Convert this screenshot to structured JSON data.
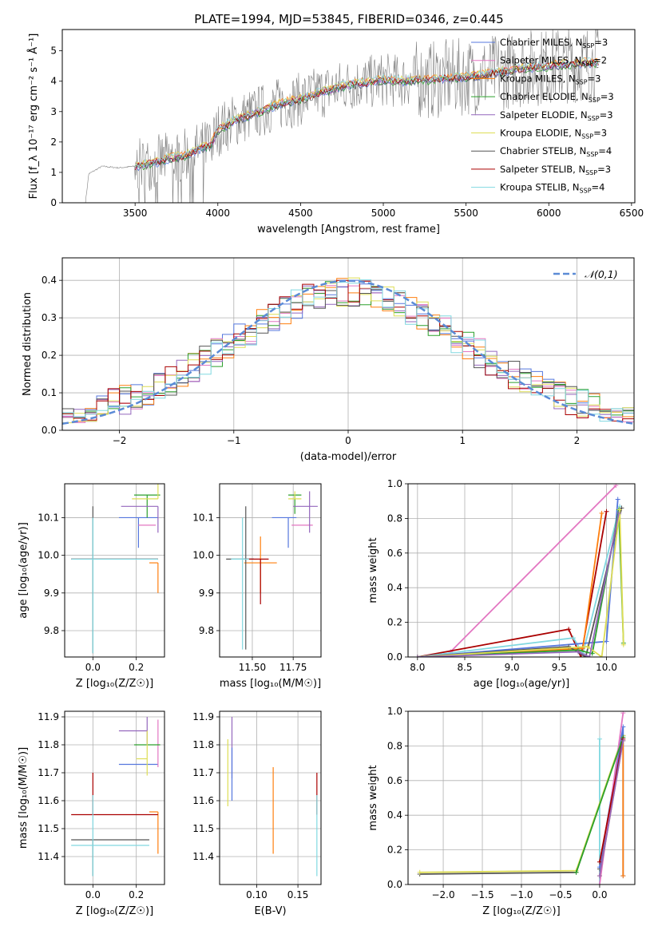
{
  "title": "PLATE=1994, MJD=53845, FIBERID=0346, z=0.445",
  "colors": {
    "chabrier_miles": "#5577dd",
    "salpeter_miles": "#e377c2",
    "kroupa_miles": "#ff7f0e",
    "chabrier_elodie": "#2ca02c",
    "salpeter_elodie": "#9467bd",
    "kroupa_elodie": "#dddd55",
    "chabrier_stelib": "#555555",
    "salpeter_stelib": "#aa0000",
    "kroupa_stelib": "#80d8e0",
    "gauss": "#5b8bd6",
    "spectrum": "#808080"
  },
  "chart_data": [
    {
      "id": "spectrum",
      "type": "line",
      "xlabel": "wavelength [Angstrom, rest frame]",
      "ylabel": "Flux [f_λ 10⁻¹⁷ erg cm⁻² s⁻¹ Å⁻¹]",
      "xlim": [
        3060,
        6520
      ],
      "ylim": [
        0,
        5.7
      ],
      "xticks": [
        3500,
        4000,
        4500,
        5000,
        5500,
        6000,
        6500
      ],
      "yticks": [
        0,
        1,
        2,
        3,
        4,
        5
      ],
      "grid": false,
      "legend": "top-right",
      "legend_entries": [
        {
          "key": "chabrier_miles",
          "label": "Chabrier MILES, N",
          "n": "3"
        },
        {
          "key": "salpeter_miles",
          "label": "Salpeter MILES, N",
          "n": "2"
        },
        {
          "key": "kroupa_miles",
          "label": "Kroupa MILES, N",
          "n": "3"
        },
        {
          "key": "chabrier_elodie",
          "label": "Chabrier ELODIE, N",
          "n": "3"
        },
        {
          "key": "salpeter_elodie",
          "label": "Salpeter ELODIE, N",
          "n": "3"
        },
        {
          "key": "kroupa_elodie",
          "label": "Kroupa ELODIE, N",
          "n": "3"
        },
        {
          "key": "chabrier_stelib",
          "label": "Chabrier STELIB, N",
          "n": "4"
        },
        {
          "key": "salpeter_stelib",
          "label": "Salpeter STELIB, N",
          "n": "3"
        },
        {
          "key": "kroupa_stelib",
          "label": "Kroupa STELIB, N",
          "n": "4"
        }
      ],
      "legend_sub": "SSP",
      "envelope": [
        [
          3200,
          0
        ],
        [
          3220,
          0.95
        ],
        [
          3300,
          1.2
        ],
        [
          3400,
          1.15
        ],
        [
          3500,
          1.2
        ],
        [
          3600,
          1.3
        ],
        [
          3700,
          1.45
        ],
        [
          3800,
          1.55
        ],
        [
          3900,
          1.8
        ],
        [
          3960,
          1.9
        ],
        [
          4000,
          2.4
        ],
        [
          4100,
          2.7
        ],
        [
          4200,
          2.9
        ],
        [
          4300,
          3.1
        ],
        [
          4400,
          3.3
        ],
        [
          4500,
          3.4
        ],
        [
          4600,
          3.6
        ],
        [
          4700,
          3.75
        ],
        [
          4800,
          3.9
        ],
        [
          4900,
          3.95
        ],
        [
          5000,
          4.05
        ],
        [
          5100,
          4.0
        ],
        [
          5200,
          4.05
        ],
        [
          5300,
          4.05
        ],
        [
          5400,
          4.1
        ],
        [
          5500,
          4.15
        ],
        [
          5600,
          4.2
        ],
        [
          5700,
          4.3
        ],
        [
          5800,
          4.4
        ],
        [
          5900,
          4.45
        ],
        [
          6000,
          4.5
        ],
        [
          6100,
          4.55
        ],
        [
          6200,
          4.6
        ],
        [
          6300,
          4.6
        ]
      ]
    },
    {
      "id": "residuals",
      "type": "line",
      "xlabel": "(data-model)/error",
      "ylabel": "Normed distribution",
      "xlim": [
        -2.5,
        2.5
      ],
      "ylim": [
        0,
        0.46
      ],
      "xticks": [
        -2,
        -1,
        0,
        1,
        2
      ],
      "yticks": [
        0.0,
        0.1,
        0.2,
        0.3,
        0.4
      ],
      "grid": true,
      "legend": "top-right",
      "legend_label": "𝒩(0,1)"
    },
    {
      "id": "z_age",
      "type": "scatter",
      "xlabel": "Z [log₁₀(Z/Z☉)]",
      "ylabel": "age  [log₁₀(age/yr)]",
      "xlim": [
        -0.13,
        0.33
      ],
      "ylim": [
        9.73,
        10.19
      ],
      "xticks": [
        0.0,
        0.2
      ],
      "yticks": [
        9.8,
        9.9,
        10.0,
        10.1
      ],
      "grid": true,
      "series": [
        {
          "name": "chabrier_miles",
          "x": 0.21,
          "y": 10.1,
          "xerr": [
            0.09,
            0.09
          ],
          "yerr": [
            0.08,
            0.0
          ]
        },
        {
          "name": "salpeter_miles",
          "x": 0.25,
          "y": 10.08,
          "xerr": [
            0.04,
            0.04
          ],
          "yerr": [
            0,
            0
          ]
        },
        {
          "name": "kroupa_miles",
          "x": 0.3,
          "y": 9.98,
          "xerr": [
            0.04,
            0
          ],
          "yerr": [
            0.08,
            0
          ]
        },
        {
          "name": "chabrier_elodie",
          "x": 0.25,
          "y": 10.16,
          "xerr": [
            0.06,
            0.06
          ],
          "yerr": [
            0.06,
            0
          ]
        },
        {
          "name": "salpeter_elodie",
          "x": 0.3,
          "y": 10.13,
          "xerr": [
            0.17,
            0
          ],
          "yerr": [
            0.07,
            0
          ]
        },
        {
          "name": "kroupa_elodie",
          "x": 0.3,
          "y": 10.15,
          "xerr": [
            0.12,
            0
          ],
          "yerr": [
            0.0,
            0.05
          ]
        },
        {
          "name": "chabrier_stelib",
          "x": 0.0,
          "y": 9.99,
          "xerr": [
            0.1,
            0.3
          ],
          "yerr": [
            0.25,
            0.14
          ]
        },
        {
          "name": "salpeter_stelib",
          "x": 0.0,
          "y": 9.99,
          "xerr": [
            0.1,
            0.3
          ],
          "yerr": [
            0,
            0
          ]
        },
        {
          "name": "kroupa_stelib",
          "x": 0.0,
          "y": 9.99,
          "xerr": [
            0.1,
            0.3
          ],
          "yerr": [
            0.25,
            0.11
          ]
        }
      ]
    },
    {
      "id": "mass_age",
      "type": "scatter",
      "xlabel": "mass [log₁₀(M/M☉)]",
      "ylabel": "",
      "xlim": [
        11.3,
        11.92
      ],
      "ylim": [
        9.73,
        10.19
      ],
      "xticks": [
        11.5,
        11.75
      ],
      "yticks": [
        9.8,
        9.9,
        10.0,
        10.1
      ],
      "grid": true,
      "series": [
        {
          "name": "chabrier_miles",
          "x": 11.72,
          "y": 10.1,
          "xerr": [
            0.1,
            0.05
          ],
          "yerr": [
            0.08,
            0
          ]
        },
        {
          "name": "salpeter_miles",
          "x": 11.82,
          "y": 10.08,
          "xerr": [
            0.08,
            0.05
          ],
          "yerr": [
            0,
            0
          ]
        },
        {
          "name": "kroupa_miles",
          "x": 11.55,
          "y": 9.98,
          "xerr": [
            0.1,
            0.1
          ],
          "yerr": [
            0.08,
            0.07
          ]
        },
        {
          "name": "chabrier_elodie",
          "x": 11.76,
          "y": 10.16,
          "xerr": [
            0.04,
            0.04
          ],
          "yerr": [
            0.05,
            0
          ]
        },
        {
          "name": "salpeter_elodie",
          "x": 11.85,
          "y": 10.13,
          "xerr": [
            0.1,
            0.05
          ],
          "yerr": [
            0.07,
            0.04
          ]
        },
        {
          "name": "kroupa_elodie",
          "x": 11.76,
          "y": 10.15,
          "xerr": [
            0.04,
            0.04
          ],
          "yerr": [
            0,
            0.02
          ]
        },
        {
          "name": "chabrier_stelib",
          "x": 11.46,
          "y": 9.99,
          "xerr": [
            0.12,
            0.05
          ],
          "yerr": [
            0.24,
            0.14
          ]
        },
        {
          "name": "salpeter_stelib",
          "x": 11.55,
          "y": 9.99,
          "xerr": [
            0.1,
            0.05
          ],
          "yerr": [
            0.12,
            0
          ]
        },
        {
          "name": "kroupa_stelib",
          "x": 11.44,
          "y": 9.99,
          "xerr": [
            0.07,
            0.04
          ],
          "yerr": [
            0.24,
            0.11
          ]
        }
      ]
    },
    {
      "id": "weight_age",
      "type": "line",
      "xlabel": "age  [log₁₀(age/yr)]",
      "ylabel": "mass weight",
      "xlim": [
        7.9,
        10.3
      ],
      "ylim": [
        0,
        1.0
      ],
      "xticks": [
        8.0,
        8.5,
        9.0,
        9.5,
        10.0
      ],
      "yticks": [
        0.0,
        0.2,
        0.4,
        0.6,
        0.8,
        1.0
      ],
      "grid": true,
      "series": [
        {
          "name": "salpeter_miles",
          "x": [
            8.35,
            10.1
          ],
          "y": [
            0.03,
            0.99
          ]
        },
        {
          "name": "salpeter_stelib",
          "x": [
            8.0,
            9.6,
            9.73,
            10.0
          ],
          "y": [
            0.0,
            0.16,
            0.0,
            0.84
          ]
        },
        {
          "name": "kroupa_stelib",
          "x": [
            8.0,
            9.65,
            9.75,
            10.14
          ],
          "y": [
            0.0,
            0.11,
            0.02,
            0.87
          ]
        },
        {
          "name": "chabrier_miles",
          "x": [
            8.0,
            10.0,
            10.12
          ],
          "y": [
            0.0,
            0.09,
            0.91
          ]
        },
        {
          "name": "kroupa_miles",
          "x": [
            8.0,
            9.75,
            9.95
          ],
          "y": [
            0.0,
            0.05,
            0.83
          ]
        },
        {
          "name": "chabrier_stelib",
          "x": [
            8.0,
            9.6,
            9.78,
            10.16
          ],
          "y": [
            0.0,
            0.06,
            0.0,
            0.86
          ]
        },
        {
          "name": "chabrier_elodie",
          "x": [
            8.0,
            9.7,
            9.85,
            10.13,
            10.18
          ],
          "y": [
            0.0,
            0.04,
            0.02,
            0.85,
            0.08
          ]
        },
        {
          "name": "kroupa_elodie",
          "x": [
            8.0,
            9.8,
            9.95,
            10.14,
            10.18
          ],
          "y": [
            0.0,
            0.06,
            0.0,
            0.85,
            0.07
          ]
        },
        {
          "name": "salpeter_elodie",
          "x": [
            8.0,
            9.7,
            9.82,
            10.13
          ],
          "y": [
            0.0,
            0.03,
            0.0,
            0.83
          ]
        }
      ]
    },
    {
      "id": "z_mass",
      "type": "scatter",
      "xlabel": "Z [log₁₀(Z/Z☉)]",
      "ylabel": "mass [log₁₀(M/M☉)]",
      "xlim": [
        -0.13,
        0.33
      ],
      "ylim": [
        11.3,
        11.92
      ],
      "xticks": [
        0.0,
        0.2
      ],
      "yticks": [
        11.4,
        11.5,
        11.6,
        11.7,
        11.8,
        11.9
      ],
      "grid": true,
      "series": [
        {
          "name": "chabrier_miles",
          "x": 0.21,
          "y": 11.73,
          "xerr": [
            0.09,
            0.09
          ],
          "yerr": [
            0,
            0
          ]
        },
        {
          "name": "salpeter_miles",
          "x": 0.3,
          "y": 11.8,
          "xerr": [
            0,
            0
          ],
          "yerr": [
            0.08,
            0.09
          ]
        },
        {
          "name": "kroupa_miles",
          "x": 0.3,
          "y": 11.56,
          "xerr": [
            0.04,
            0
          ],
          "yerr": [
            0.15,
            0
          ]
        },
        {
          "name": "chabrier_elodie",
          "x": 0.25,
          "y": 11.8,
          "xerr": [
            0.06,
            0.06
          ],
          "yerr": [
            0,
            0
          ]
        },
        {
          "name": "salpeter_elodie",
          "x": 0.25,
          "y": 11.85,
          "xerr": [
            0.13,
            0
          ],
          "yerr": [
            0.05,
            0.05
          ]
        },
        {
          "name": "kroupa_elodie",
          "x": 0.25,
          "y": 11.75,
          "xerr": [
            0.05,
            0
          ],
          "yerr": [
            0.06,
            0.1
          ]
        },
        {
          "name": "chabrier_stelib",
          "x": 0.0,
          "y": 11.46,
          "xerr": [
            0.1,
            0.26
          ],
          "yerr": [
            0.13,
            0
          ]
        },
        {
          "name": "salpeter_stelib",
          "x": 0.0,
          "y": 11.55,
          "xerr": [
            0.1,
            0.3
          ],
          "yerr": [
            0,
            0.15
          ]
        },
        {
          "name": "kroupa_stelib",
          "x": 0.0,
          "y": 11.44,
          "xerr": [
            0.1,
            0.26
          ],
          "yerr": [
            0.11,
            0.18
          ]
        }
      ]
    },
    {
      "id": "ebv_mass",
      "type": "scatter",
      "xlabel": "E(B-V)",
      "ylabel": "",
      "xlim": [
        0.055,
        0.178
      ],
      "ylim": [
        11.3,
        11.92
      ],
      "xticks": [
        0.1,
        0.15
      ],
      "yticks": [
        11.4,
        11.5,
        11.6,
        11.7,
        11.8,
        11.9
      ],
      "grid": true,
      "series": [
        {
          "name": "salpeter_elodie",
          "x": 0.07,
          "y": 11.85,
          "yerr": [
            0.17,
            0.05
          ]
        },
        {
          "name": "kroupa_elodie",
          "x": 0.065,
          "y": 11.75,
          "yerr": [
            0.17,
            0.07
          ]
        },
        {
          "name": "chabrier_miles",
          "x": 0.07,
          "y": 11.73,
          "yerr": [
            0.13,
            0.06
          ]
        },
        {
          "name": "kroupa_miles",
          "x": 0.12,
          "y": 11.56,
          "yerr": [
            0.15,
            0.16
          ]
        },
        {
          "name": "salpeter_stelib",
          "x": 0.173,
          "y": 11.55,
          "yerr": [
            0.0,
            0.15
          ]
        },
        {
          "name": "kroupa_stelib",
          "x": 0.173,
          "y": 11.44,
          "yerr": [
            0.11,
            0.18
          ]
        }
      ]
    },
    {
      "id": "weight_z",
      "type": "line",
      "xlabel": "Z [log₁₀(Z/Z☉)]",
      "ylabel": "mass weight",
      "xlim": [
        -2.45,
        0.45
      ],
      "ylim": [
        0,
        1.0
      ],
      "xticks": [
        -2.0,
        -1.5,
        -1.0,
        -0.5,
        0.0
      ],
      "yticks": [
        0.0,
        0.2,
        0.4,
        0.6,
        0.8,
        1.0
      ],
      "grid": true,
      "series": [
        {
          "name": "kroupa_stelib",
          "x": [
            0.0,
            0.0,
            -0.0
          ],
          "y": [
            0.0,
            0.84,
            0.0
          ]
        },
        {
          "name": "chabrier_stelib",
          "x": [
            -2.3,
            -0.3,
            0.3,
            0.0
          ],
          "y": [
            0.06,
            0.07,
            0.86,
            0.09
          ]
        },
        {
          "name": "kroupa_elodie",
          "x": [
            -2.3,
            -0.3,
            0.3
          ],
          "y": [
            0.07,
            0.08,
            0.86
          ]
        },
        {
          "name": "chabrier_miles",
          "x": [
            0.0,
            0.3,
            0.3
          ],
          "y": [
            0.1,
            0.91,
            0.05
          ]
        },
        {
          "name": "salpeter_miles",
          "x": [
            0.0,
            0.3
          ],
          "y": [
            0.0,
            0.99
          ]
        },
        {
          "name": "kroupa_miles",
          "x": [
            0.0,
            0.3,
            0.3
          ],
          "y": [
            0.05,
            0.83,
            0.05
          ]
        },
        {
          "name": "chabrier_elodie",
          "x": [
            -0.3,
            0.3
          ],
          "y": [
            0.07,
            0.85
          ]
        },
        {
          "name": "salpeter_stelib",
          "x": [
            0.0,
            0.3
          ],
          "y": [
            0.13,
            0.84
          ]
        },
        {
          "name": "salpeter_elodie",
          "x": [
            0.0,
            0.3
          ],
          "y": [
            0.05,
            0.83
          ]
        }
      ]
    }
  ]
}
